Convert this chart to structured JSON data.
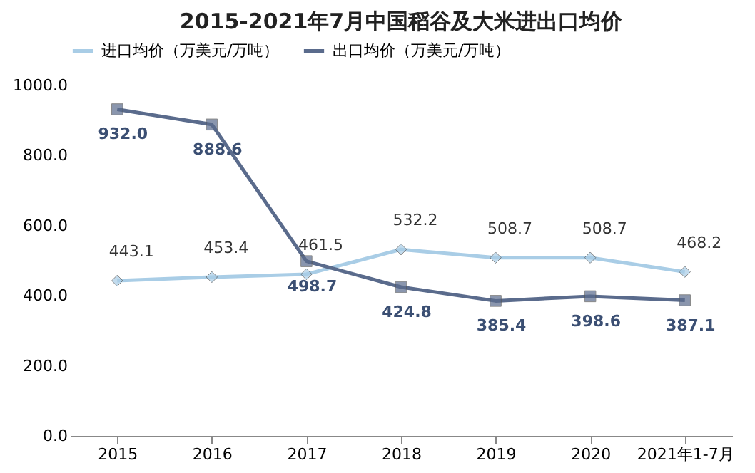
{
  "chart_data": {
    "type": "line",
    "title": "2015-2021年7月中国稻谷及大米进出口均价",
    "categories": [
      "2015",
      "2016",
      "2017",
      "2018",
      "2019",
      "2020",
      "2021年1-7月"
    ],
    "series": [
      {
        "name": "进口均价（万美元/万吨）",
        "color": "#a9cde6",
        "marker": "diamond",
        "values": [
          443.1,
          453.4,
          461.5,
          532.2,
          508.7,
          508.7,
          468.2
        ]
      },
      {
        "name": "出口均价（万美元/万吨）",
        "color": "#5a6b8c",
        "marker": "square",
        "values": [
          932.0,
          888.6,
          498.7,
          424.8,
          385.4,
          398.6,
          387.1
        ],
        "value_labels": [
          "932.0",
          "888.6",
          "498.7",
          "424.8",
          "385.4",
          "398.6",
          "387.1"
        ]
      }
    ],
    "ylim": [
      0,
      1000
    ],
    "yticks": [
      {
        "value": 0,
        "label": "0.0"
      },
      {
        "value": 200,
        "label": "200.0"
      },
      {
        "value": 400,
        "label": "400.0"
      },
      {
        "value": 600,
        "label": "600.0"
      },
      {
        "value": 800,
        "label": "800.0"
      },
      {
        "value": 1000,
        "label": "1000.0"
      }
    ],
    "data_labels": true,
    "legend": "top",
    "grid": false,
    "line_style": "solid"
  }
}
